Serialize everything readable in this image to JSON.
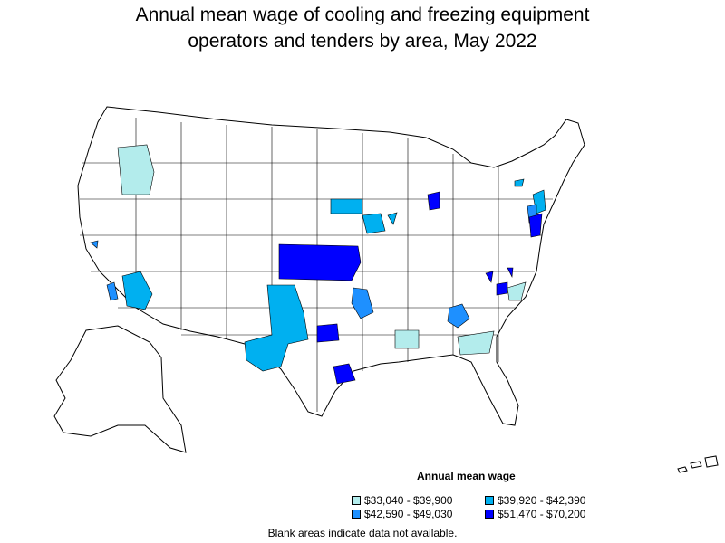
{
  "title": {
    "line1": "Annual mean wage of cooling and freezing equipment",
    "line2": "operators and tenders by area, May 2022"
  },
  "legend": {
    "title": "Annual mean wage",
    "items": [
      {
        "label": "$33,040 - $39,900",
        "color": "#b3ecec"
      },
      {
        "label": "$39,920 - $42,390",
        "color": "#00b0f0"
      },
      {
        "label": "$42,590 - $49,030",
        "color": "#1e90ff"
      },
      {
        "label": "$51,470 - $70,200",
        "color": "#0000ff"
      }
    ]
  },
  "note": "Blank areas indicate data not available."
}
